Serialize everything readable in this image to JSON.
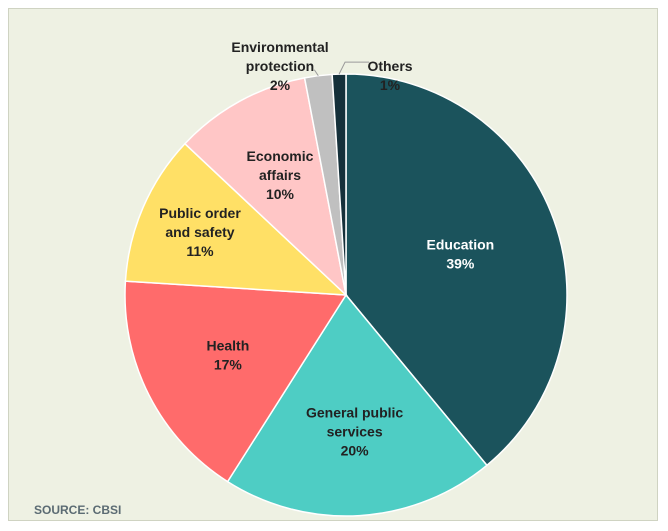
{
  "chart_data": {
    "type": "pie",
    "start_at": "12 o'clock",
    "direction": "clockwise",
    "slices": [
      {
        "label": [
          "Education"
        ],
        "value": 39,
        "value_label": "39%",
        "color": "#1b535c",
        "text_color": "#ffffff"
      },
      {
        "label": [
          "General public",
          "services"
        ],
        "value": 20,
        "value_label": "20%",
        "color": "#4ecdc4",
        "text_color": "#222222"
      },
      {
        "label": [
          "Health"
        ],
        "value": 17,
        "value_label": "17%",
        "color": "#ff6b6b",
        "text_color": "#222222"
      },
      {
        "label": [
          "Public order",
          "and safety"
        ],
        "value": 11,
        "value_label": "11%",
        "color": "#ffe066",
        "text_color": "#222222"
      },
      {
        "label": [
          "Economic",
          "affairs"
        ],
        "value": 10,
        "value_label": "10%",
        "color": "#ffc6c6",
        "text_color": "#222222"
      },
      {
        "label": [
          "Environmental",
          "protection"
        ],
        "value": 2,
        "value_label": "2%",
        "color": "#c0c0c0",
        "text_color": "#222222"
      },
      {
        "label": [
          "Others"
        ],
        "value": 1,
        "value_label": "1%",
        "color": "#15303a",
        "text_color": "#222222"
      }
    ]
  },
  "source": "SOURCE: CBSI"
}
